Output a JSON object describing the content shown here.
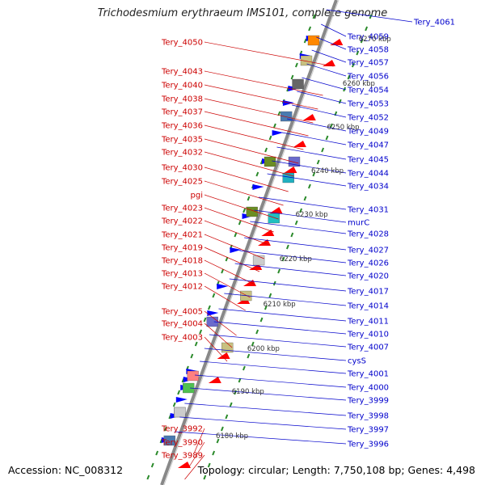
{
  "title": "Trichodesmium erythraeum IMS101, complete genome",
  "footer": {
    "accession": "Accession: NC_008312",
    "summary": "Topology: circular; Length: 7,750,108 bp; Genes: 4,498"
  },
  "colors": {
    "forward": "#ff0000",
    "reverse": "#0000ff",
    "label_red": "#cc0000",
    "label_blue": "#0000cc",
    "backbone": "#888888",
    "ticks": "#2a8a2a"
  },
  "kbp_markers": [
    "6180 kbp",
    "6190 kbp",
    "6200 kbp",
    "6210 kbp",
    "6220 kbp",
    "6230 kbp",
    "6240 kbp",
    "6250 kbp",
    "6260 kbp",
    "6270 kbp"
  ],
  "left_labels": [
    "Tery_4050",
    "Tery_4043",
    "Tery_4040",
    "Tery_4038",
    "Tery_4037",
    "Tery_4036",
    "Tery_4035",
    "Tery_4032",
    "Tery_4030",
    "Tery_4025",
    "pgi",
    "Tery_4023",
    "Tery_4022",
    "Tery_4021",
    "Tery_4019",
    "Tery_4018",
    "Tery_4013",
    "Tery_4012",
    "Tery_4005",
    "Tery_4004",
    "Tery_4003",
    "Tery_3992",
    "Tery_3990",
    "Tery_3989"
  ],
  "right_labels": [
    "Tery_4061",
    "Tery_4059",
    "Tery_4058",
    "Tery_4057",
    "Tery_4056",
    "Tery_4054",
    "Tery_4053",
    "Tery_4052",
    "Tery_4049",
    "Tery_4047",
    "Tery_4045",
    "Tery_4044",
    "Tery_4034",
    "Tery_4031",
    "murC",
    "Tery_4028",
    "Tery_4027",
    "Tery_4026",
    "Tery_4020",
    "Tery_4017",
    "Tery_4014",
    "Tery_4011",
    "Tery_4010",
    "Tery_4007",
    "cysS",
    "Tery_4001",
    "Tery_4000",
    "Tery_3999",
    "Tery_3998",
    "Tery_3997",
    "Tery_3996"
  ]
}
